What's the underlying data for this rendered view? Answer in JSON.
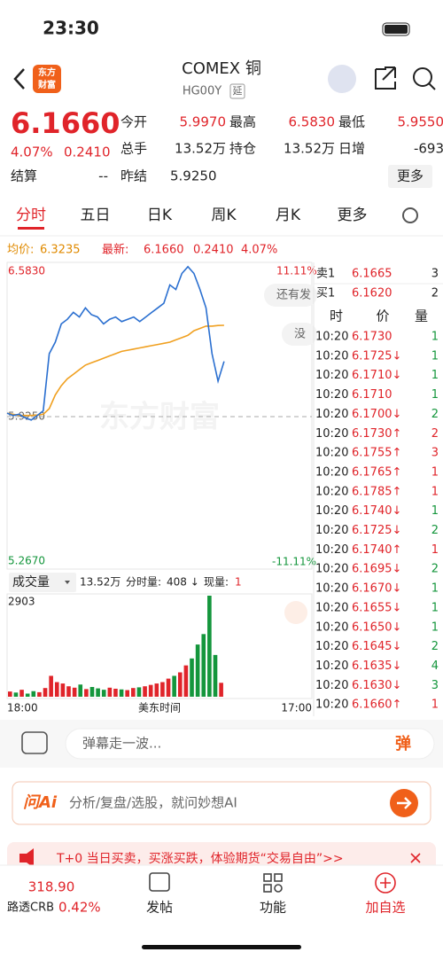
{
  "status_bar": {
    "time": "23:30"
  },
  "header": {
    "logo": [
      "东方",
      "财富"
    ],
    "title": "COMEX 铜",
    "code": "HG00Y",
    "tag": "延"
  },
  "quote": {
    "price": "6.1660",
    "change_pct": "4.07%",
    "change": "0.2410",
    "row1": [
      [
        "今开",
        "5.9970"
      ],
      [
        "最高",
        "6.5830"
      ],
      [
        "最低",
        "5.9550"
      ]
    ],
    "row2": [
      [
        "总手",
        "13.52万"
      ],
      [
        "持仓",
        "13.52万"
      ],
      [
        "日增",
        "-693"
      ]
    ],
    "settle": [
      "结算",
      "--"
    ],
    "prev_settle": [
      "昨结",
      "5.9250"
    ],
    "more": "更多"
  },
  "tabs": [
    "分时",
    "五日",
    "日K",
    "周K",
    "月K",
    "更多"
  ],
  "info": {
    "avg_label": "均价:",
    "avg": "6.3235",
    "latest_label": "最新:",
    "latest": "6.1660",
    "change": "0.2410",
    "pct": "4.07%"
  },
  "price_chart": {
    "ylim": [
      5.267,
      6.583
    ],
    "yticks": [
      {
        "value": 6.583,
        "label": "6.5830"
      },
      {
        "value": 5.925,
        "label": "5.9250"
      },
      {
        "value": 5.267,
        "label": "5.2670"
      }
    ],
    "pct_labels": [
      "11.11%",
      "-11.11%"
    ],
    "watermark": "东方财富",
    "bubbles": [
      "还有发",
      "没"
    ],
    "price": [
      5.94,
      5.93,
      5.935,
      5.92,
      5.91,
      5.93,
      5.95,
      6.2,
      6.25,
      6.33,
      6.35,
      6.38,
      6.36,
      6.4,
      6.37,
      6.36,
      6.33,
      6.35,
      6.36,
      6.34,
      6.35,
      6.36,
      6.34,
      6.36,
      6.38,
      6.4,
      6.42,
      6.5,
      6.48,
      6.55,
      6.58,
      6.55,
      6.48,
      6.4,
      6.2,
      6.08,
      6.166
    ],
    "average": [
      5.94,
      5.935,
      5.93,
      5.93,
      5.93,
      5.932,
      5.935,
      5.96,
      6.02,
      6.06,
      6.09,
      6.11,
      6.13,
      6.15,
      6.16,
      6.17,
      6.18,
      6.19,
      6.2,
      6.21,
      6.215,
      6.22,
      6.225,
      6.23,
      6.235,
      6.24,
      6.245,
      6.25,
      6.26,
      6.27,
      6.28,
      6.3,
      6.31,
      6.32,
      6.32,
      6.323,
      6.3235
    ]
  },
  "volume": {
    "label": "成交量",
    "total": "13.52万",
    "minute_label": "分时量:",
    "minute": "408 ↓",
    "now_label": "现量:",
    "now": "1",
    "ylim": [
      0,
      2903
    ],
    "yticks": [
      2903
    ],
    "values": [
      150,
      120,
      200,
      90,
      160,
      130,
      250,
      600,
      420,
      380,
      300,
      260,
      350,
      220,
      280,
      240,
      200,
      260,
      230,
      210,
      190,
      250,
      270,
      300,
      340,
      380,
      420,
      520,
      600,
      700,
      900,
      1100,
      1500,
      1800,
      2903,
      1200,
      400
    ],
    "x_labels": [
      "18:00",
      "美东时间",
      "17:00"
    ]
  },
  "order_book": {
    "ask": [
      "卖1",
      "6.1665",
      "3"
    ],
    "bid": [
      "买1",
      "6.1620",
      "2"
    ],
    "header": [
      "时",
      "价",
      "量"
    ],
    "trades": [
      [
        "10:20",
        "6.1730",
        "1"
      ],
      [
        "10:20",
        "6.1725↓",
        "1"
      ],
      [
        "10:20",
        "6.1710↓",
        "1"
      ],
      [
        "10:20",
        "6.1710",
        "1"
      ],
      [
        "10:20",
        "6.1700↓",
        "2"
      ],
      [
        "10:20",
        "6.1730↑",
        "2"
      ],
      [
        "10:20",
        "6.1755↑",
        "3"
      ],
      [
        "10:20",
        "6.1765↑",
        "1"
      ],
      [
        "10:20",
        "6.1785↑",
        "1"
      ],
      [
        "10:20",
        "6.1740↓",
        "1"
      ],
      [
        "10:20",
        "6.1725↓",
        "2"
      ],
      [
        "10:20",
        "6.1740↑",
        "1"
      ],
      [
        "10:20",
        "6.1695↓",
        "2"
      ],
      [
        "10:20",
        "6.1670↓",
        "1"
      ],
      [
        "10:20",
        "6.1655↓",
        "1"
      ],
      [
        "10:20",
        "6.1650↓",
        "1"
      ],
      [
        "10:20",
        "6.1645↓",
        "2"
      ],
      [
        "10:20",
        "6.1635↓",
        "4"
      ],
      [
        "10:20",
        "6.1630↓",
        "3"
      ],
      [
        "10:20",
        "6.1660↑",
        "1"
      ]
    ]
  },
  "input": {
    "placeholder": "弹幕走一波...",
    "button": "弹"
  },
  "ai": {
    "logo": "问Ai",
    "prompt": "分析/复盘/选股，就问妙想AI"
  },
  "banner": "T+0 当日买卖，买涨买跌，体验期货“交易自由”>>",
  "nav": {
    "index_value": "318.90",
    "index_name": "路透CRB",
    "index_pct": "0.42%",
    "items": [
      "发帖",
      "功能",
      "加自选"
    ]
  }
}
